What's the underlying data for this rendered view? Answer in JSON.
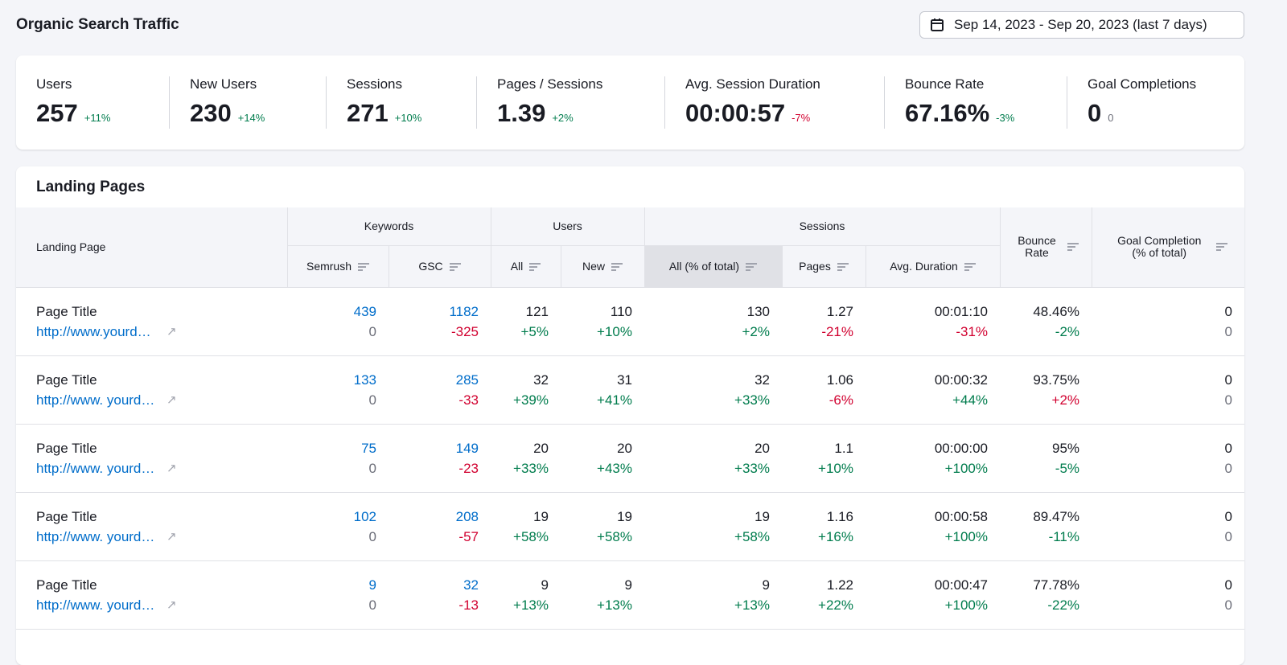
{
  "header": {
    "title": "Organic Search Traffic",
    "date_range": "Sep 14, 2023 - Sep 20, 2023 (last 7 days)"
  },
  "metrics": [
    {
      "label": "Users",
      "value": "257",
      "delta": "+11%",
      "trend": "pos"
    },
    {
      "label": "New Users",
      "value": "230",
      "delta": "+14%",
      "trend": "pos"
    },
    {
      "label": "Sessions",
      "value": "271",
      "delta": "+10%",
      "trend": "pos"
    },
    {
      "label": "Pages / Sessions",
      "value": "1.39",
      "delta": "+2%",
      "trend": "pos"
    },
    {
      "label": "Avg. Session Duration",
      "value": "00:00:57",
      "delta": "-7%",
      "trend": "neg"
    },
    {
      "label": "Bounce Rate",
      "value": "67.16%",
      "delta": "-3%",
      "trend": "pos"
    },
    {
      "label": "Goal Completions",
      "value": "0",
      "delta": "0",
      "trend": "neu"
    }
  ],
  "landing": {
    "title": "Landing Pages",
    "groups": {
      "landing_page": "Landing Page",
      "keywords": "Keywords",
      "users": "Users",
      "sessions": "Sessions",
      "bounce_rate": "Bounce Rate",
      "goal": "Goal Completion (% of total)"
    },
    "subcols": {
      "semrush": "Semrush",
      "gsc": "GSC",
      "all": "All",
      "new": "New",
      "sessions_all": "All (% of total)",
      "pages": "Pages",
      "avg_duration": "Avg. Duration"
    },
    "rows": [
      {
        "title": "Page Title",
        "url": "http://www.yourdomain.com/i...",
        "cells": [
          [
            "439",
            "0"
          ],
          [
            "1182",
            "-325"
          ],
          [
            "121",
            "+5%"
          ],
          [
            "110",
            "+10%"
          ],
          [
            "130",
            "+2%"
          ],
          [
            "1.27",
            "-21%"
          ],
          [
            "00:01:10",
            "-31%"
          ],
          [
            "48.46%",
            "-2%"
          ],
          [
            "0",
            "0"
          ]
        ],
        "trends": [
          "neu",
          "neg",
          "pos",
          "pos",
          "pos",
          "neg",
          "neg",
          "pos",
          "neu"
        ]
      },
      {
        "title": "Page Title",
        "url": "http://www. yourdomain.com/...",
        "cells": [
          [
            "133",
            "0"
          ],
          [
            "285",
            "-33"
          ],
          [
            "32",
            "+39%"
          ],
          [
            "31",
            "+41%"
          ],
          [
            "32",
            "+33%"
          ],
          [
            "1.06",
            "-6%"
          ],
          [
            "00:00:32",
            "+44%"
          ],
          [
            "93.75%",
            "+2%"
          ],
          [
            "0",
            "0"
          ]
        ],
        "trends": [
          "neu",
          "neg",
          "pos",
          "pos",
          "pos",
          "neg",
          "pos",
          "neg",
          "neu"
        ]
      },
      {
        "title": "Page Title",
        "url": "http://www. yourdomain.com/...",
        "cells": [
          [
            "75",
            "0"
          ],
          [
            "149",
            "-23"
          ],
          [
            "20",
            "+33%"
          ],
          [
            "20",
            "+43%"
          ],
          [
            "20",
            "+33%"
          ],
          [
            "1.1",
            "+10%"
          ],
          [
            "00:00:00",
            "+100%"
          ],
          [
            "95%",
            "-5%"
          ],
          [
            "0",
            "0"
          ]
        ],
        "trends": [
          "neu",
          "neg",
          "pos",
          "pos",
          "pos",
          "pos",
          "pos",
          "pos",
          "neu"
        ]
      },
      {
        "title": "Page Title",
        "url": "http://www. yourdomain.com/...",
        "cells": [
          [
            "102",
            "0"
          ],
          [
            "208",
            "-57"
          ],
          [
            "19",
            "+58%"
          ],
          [
            "19",
            "+58%"
          ],
          [
            "19",
            "+58%"
          ],
          [
            "1.16",
            "+16%"
          ],
          [
            "00:00:58",
            "+100%"
          ],
          [
            "89.47%",
            "-11%"
          ],
          [
            "0",
            "0"
          ]
        ],
        "trends": [
          "neu",
          "neg",
          "pos",
          "pos",
          "pos",
          "pos",
          "pos",
          "pos",
          "neu"
        ]
      },
      {
        "title": "Page Title",
        "url": "http://www. yourdomain.com/...",
        "cells": [
          [
            "9",
            "0"
          ],
          [
            "32",
            "-13"
          ],
          [
            "9",
            "+13%"
          ],
          [
            "9",
            "+13%"
          ],
          [
            "9",
            "+13%"
          ],
          [
            "1.22",
            "+22%"
          ],
          [
            "00:00:47",
            "+100%"
          ],
          [
            "77.78%",
            "-22%"
          ],
          [
            "0",
            "0"
          ]
        ],
        "trends": [
          "neu",
          "neg",
          "pos",
          "pos",
          "pos",
          "pos",
          "pos",
          "pos",
          "neu"
        ]
      }
    ]
  }
}
